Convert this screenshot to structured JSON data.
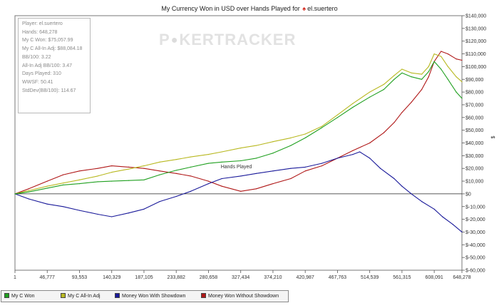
{
  "chart_data": {
    "type": "line",
    "title": {
      "prefix": "My Currency Won in USD over Hands Played for",
      "player": "el.suertero"
    },
    "xlabel": "Hands Played",
    "ylabel": "$",
    "xlim": [
      1,
      648278
    ],
    "ylim": [
      -60000,
      140000
    ],
    "x_ticks": [
      "1",
      "46,777",
      "93,553",
      "140,329",
      "187,105",
      "233,882",
      "280,658",
      "327,434",
      "374,210",
      "420,987",
      "467,763",
      "514,539",
      "561,315",
      "608,091",
      "648,278"
    ],
    "y_ticks": [
      "$140,000",
      "$130,000",
      "$120,000",
      "$110,000",
      "$100,000",
      "$90,000",
      "$80,000",
      "$70,000",
      "$60,000",
      "$50,000",
      "$40,000",
      "$30,000",
      "$20,000",
      "$10,000",
      "$0",
      "$-10,000",
      "$-20,000",
      "$-30,000",
      "$-40,000",
      "$-50,000",
      "$-60,000"
    ],
    "grid": false,
    "legend": "bottom-left",
    "series": [
      {
        "name": "My C Won",
        "color": "#20a020",
        "x": [
          1,
          20000,
          46777,
          70000,
          93553,
          120000,
          140329,
          165000,
          187105,
          210000,
          233882,
          255000,
          280658,
          300000,
          327434,
          350000,
          374210,
          400000,
          420987,
          445000,
          467763,
          490000,
          514539,
          535000,
          550000,
          561315,
          575000,
          590000,
          600000,
          608091,
          618000,
          628000,
          640000,
          648278
        ],
        "y": [
          0,
          1500,
          4500,
          7000,
          8000,
          9500,
          10000,
          10500,
          11000,
          15000,
          18500,
          21000,
          24000,
          25000,
          26000,
          28000,
          32000,
          38000,
          44000,
          52000,
          60000,
          68000,
          76000,
          82000,
          90000,
          95000,
          92000,
          90000,
          96000,
          104000,
          98000,
          90000,
          80000,
          75058
        ]
      },
      {
        "name": "My C All-In Adj",
        "color": "#b8b820",
        "x": [
          1,
          20000,
          46777,
          70000,
          93553,
          120000,
          140329,
          165000,
          187105,
          210000,
          233882,
          255000,
          280658,
          300000,
          327434,
          350000,
          374210,
          400000,
          420987,
          445000,
          467763,
          490000,
          514539,
          535000,
          550000,
          561315,
          575000,
          590000,
          600000,
          608091,
          618000,
          628000,
          640000,
          648278
        ],
        "y": [
          0,
          2500,
          6000,
          8500,
          11000,
          14000,
          17000,
          19500,
          22000,
          25000,
          27000,
          29000,
          31000,
          33000,
          36000,
          38000,
          41000,
          44000,
          47000,
          53000,
          62000,
          71000,
          80000,
          86000,
          93000,
          98000,
          95000,
          94000,
          100000,
          110000,
          108000,
          100000,
          92000,
          88084
        ]
      },
      {
        "name": "Money Won With Showdown",
        "color": "#1a1a9a",
        "x": [
          1,
          20000,
          46777,
          70000,
          93553,
          120000,
          140329,
          165000,
          187105,
          210000,
          233882,
          255000,
          280658,
          300000,
          327434,
          350000,
          374210,
          400000,
          420987,
          445000,
          467763,
          490000,
          500000,
          514539,
          530000,
          550000,
          561315,
          575000,
          590000,
          608091,
          620000,
          635000,
          648278
        ],
        "y": [
          0,
          -4000,
          -8000,
          -10000,
          -13000,
          -16000,
          -18000,
          -15000,
          -12000,
          -6000,
          -2000,
          2000,
          8000,
          12000,
          14000,
          16000,
          18000,
          20000,
          21000,
          24000,
          28000,
          31000,
          33000,
          28000,
          20000,
          12000,
          6000,
          0,
          -6000,
          -12000,
          -18000,
          -24000,
          -30000
        ]
      },
      {
        "name": "Money Won Without Showdown",
        "color": "#b01818",
        "x": [
          1,
          20000,
          46777,
          70000,
          93553,
          120000,
          140329,
          165000,
          187105,
          210000,
          233882,
          255000,
          280658,
          300000,
          327434,
          350000,
          374210,
          400000,
          420987,
          445000,
          467763,
          490000,
          514539,
          535000,
          550000,
          561315,
          575000,
          590000,
          600000,
          608091,
          618000,
          628000,
          640000,
          648278
        ],
        "y": [
          0,
          4000,
          10000,
          15000,
          18000,
          20000,
          22000,
          21000,
          20000,
          18000,
          16000,
          14000,
          10000,
          6000,
          2000,
          4000,
          8000,
          12000,
          18000,
          22000,
          28000,
          34000,
          40000,
          48000,
          56000,
          64000,
          72000,
          82000,
          92000,
          104000,
          112000,
          110000,
          106000,
          105000
        ]
      }
    ]
  },
  "stats_box": {
    "lines": [
      "Player: el.suertero",
      "Hands: 648,278",
      "My C Won: $75,057.99",
      "My C All-In Adj: $88,084.18",
      "BB/100: 3.22",
      "All-In Adj BB/100: 3.47",
      "Days Played: 310",
      "WWSF: 50.41",
      "StdDev(BB/100): 114.67"
    ]
  },
  "watermark": {
    "left": "P",
    "right": "KERTRACKER"
  }
}
